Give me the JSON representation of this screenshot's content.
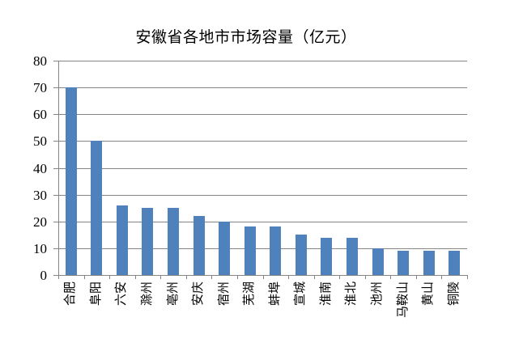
{
  "chart_data": {
    "type": "bar",
    "title": "安徽省各地市市场容量（亿元）",
    "categories": [
      "合肥",
      "阜阳",
      "六安",
      "滁州",
      "亳州",
      "安庆",
      "宿州",
      "芜湖",
      "蚌埠",
      "宣城",
      "淮南",
      "淮北",
      "池州",
      "马鞍山",
      "黄山",
      "铜陵"
    ],
    "values": [
      70,
      50,
      26,
      25,
      25,
      22,
      20,
      18,
      18,
      15,
      14,
      14,
      10,
      9,
      9,
      9
    ],
    "xlabel": "",
    "ylabel": "",
    "ylim": [
      0,
      80
    ],
    "yticks": [
      0,
      10,
      20,
      30,
      40,
      50,
      60,
      70,
      80
    ],
    "grid": "horizontal",
    "legend": "none",
    "bar_color": "#4F81BD",
    "axis_color": "#858585"
  }
}
